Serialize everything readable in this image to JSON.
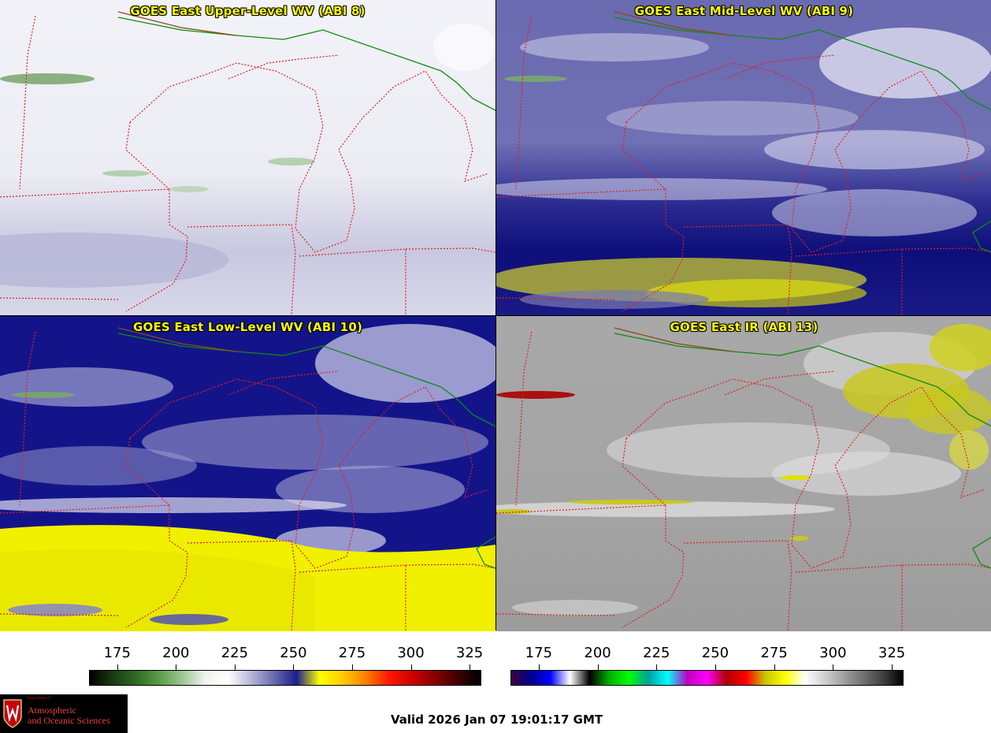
{
  "panels": [
    {
      "id": "upper",
      "title": "GOES East Upper-Level WV (ABI 8)"
    },
    {
      "id": "mid",
      "title": "GOES East Mid-Level WV (ABI 9)"
    },
    {
      "id": "low",
      "title": "GOES East Low-Level WV (ABI 10)"
    },
    {
      "id": "ir",
      "title": "GOES East IR (ABI 13)"
    }
  ],
  "colorbars": [
    {
      "id": "wv",
      "ticks": [
        "175",
        "200",
        "225",
        "250",
        "275",
        "300",
        "325"
      ],
      "range": [
        163,
        330
      ],
      "colors": [
        "#000000",
        "#1a3a12",
        "#2f6a22",
        "#5a9a48",
        "#9cc58e",
        "#eef3ee",
        "#ffffff",
        "#b8b8d8",
        "#6a6ab0",
        "#1e1e8c",
        "#ffff00",
        "#ffcc00",
        "#ff7f00",
        "#ff1a00",
        "#d00000",
        "#8a0000",
        "#400000",
        "#000000"
      ]
    },
    {
      "id": "ir",
      "ticks": [
        "175",
        "200",
        "225",
        "250",
        "275",
        "300",
        "325"
      ],
      "range": [
        163,
        330
      ],
      "colors": [
        "#3a0040",
        "#00008c",
        "#0000ff",
        "#ffffff",
        "#000000",
        "#00b000",
        "#00ff00",
        "#00a0a0",
        "#00ffff",
        "#c000c0",
        "#ff00ff",
        "#b00000",
        "#ff0000",
        "#c8c800",
        "#ffff00",
        "#ffffff",
        "#d0d0d0",
        "#a0a0a0",
        "#707070",
        "#404040",
        "#000000"
      ]
    }
  ],
  "logo": {
    "dept": "Department of",
    "name_line1": "Atmospheric",
    "name_line2": "and Oceanic Sciences"
  },
  "valid_time": "Valid 2026 Jan 07 19:01:17 GMT"
}
